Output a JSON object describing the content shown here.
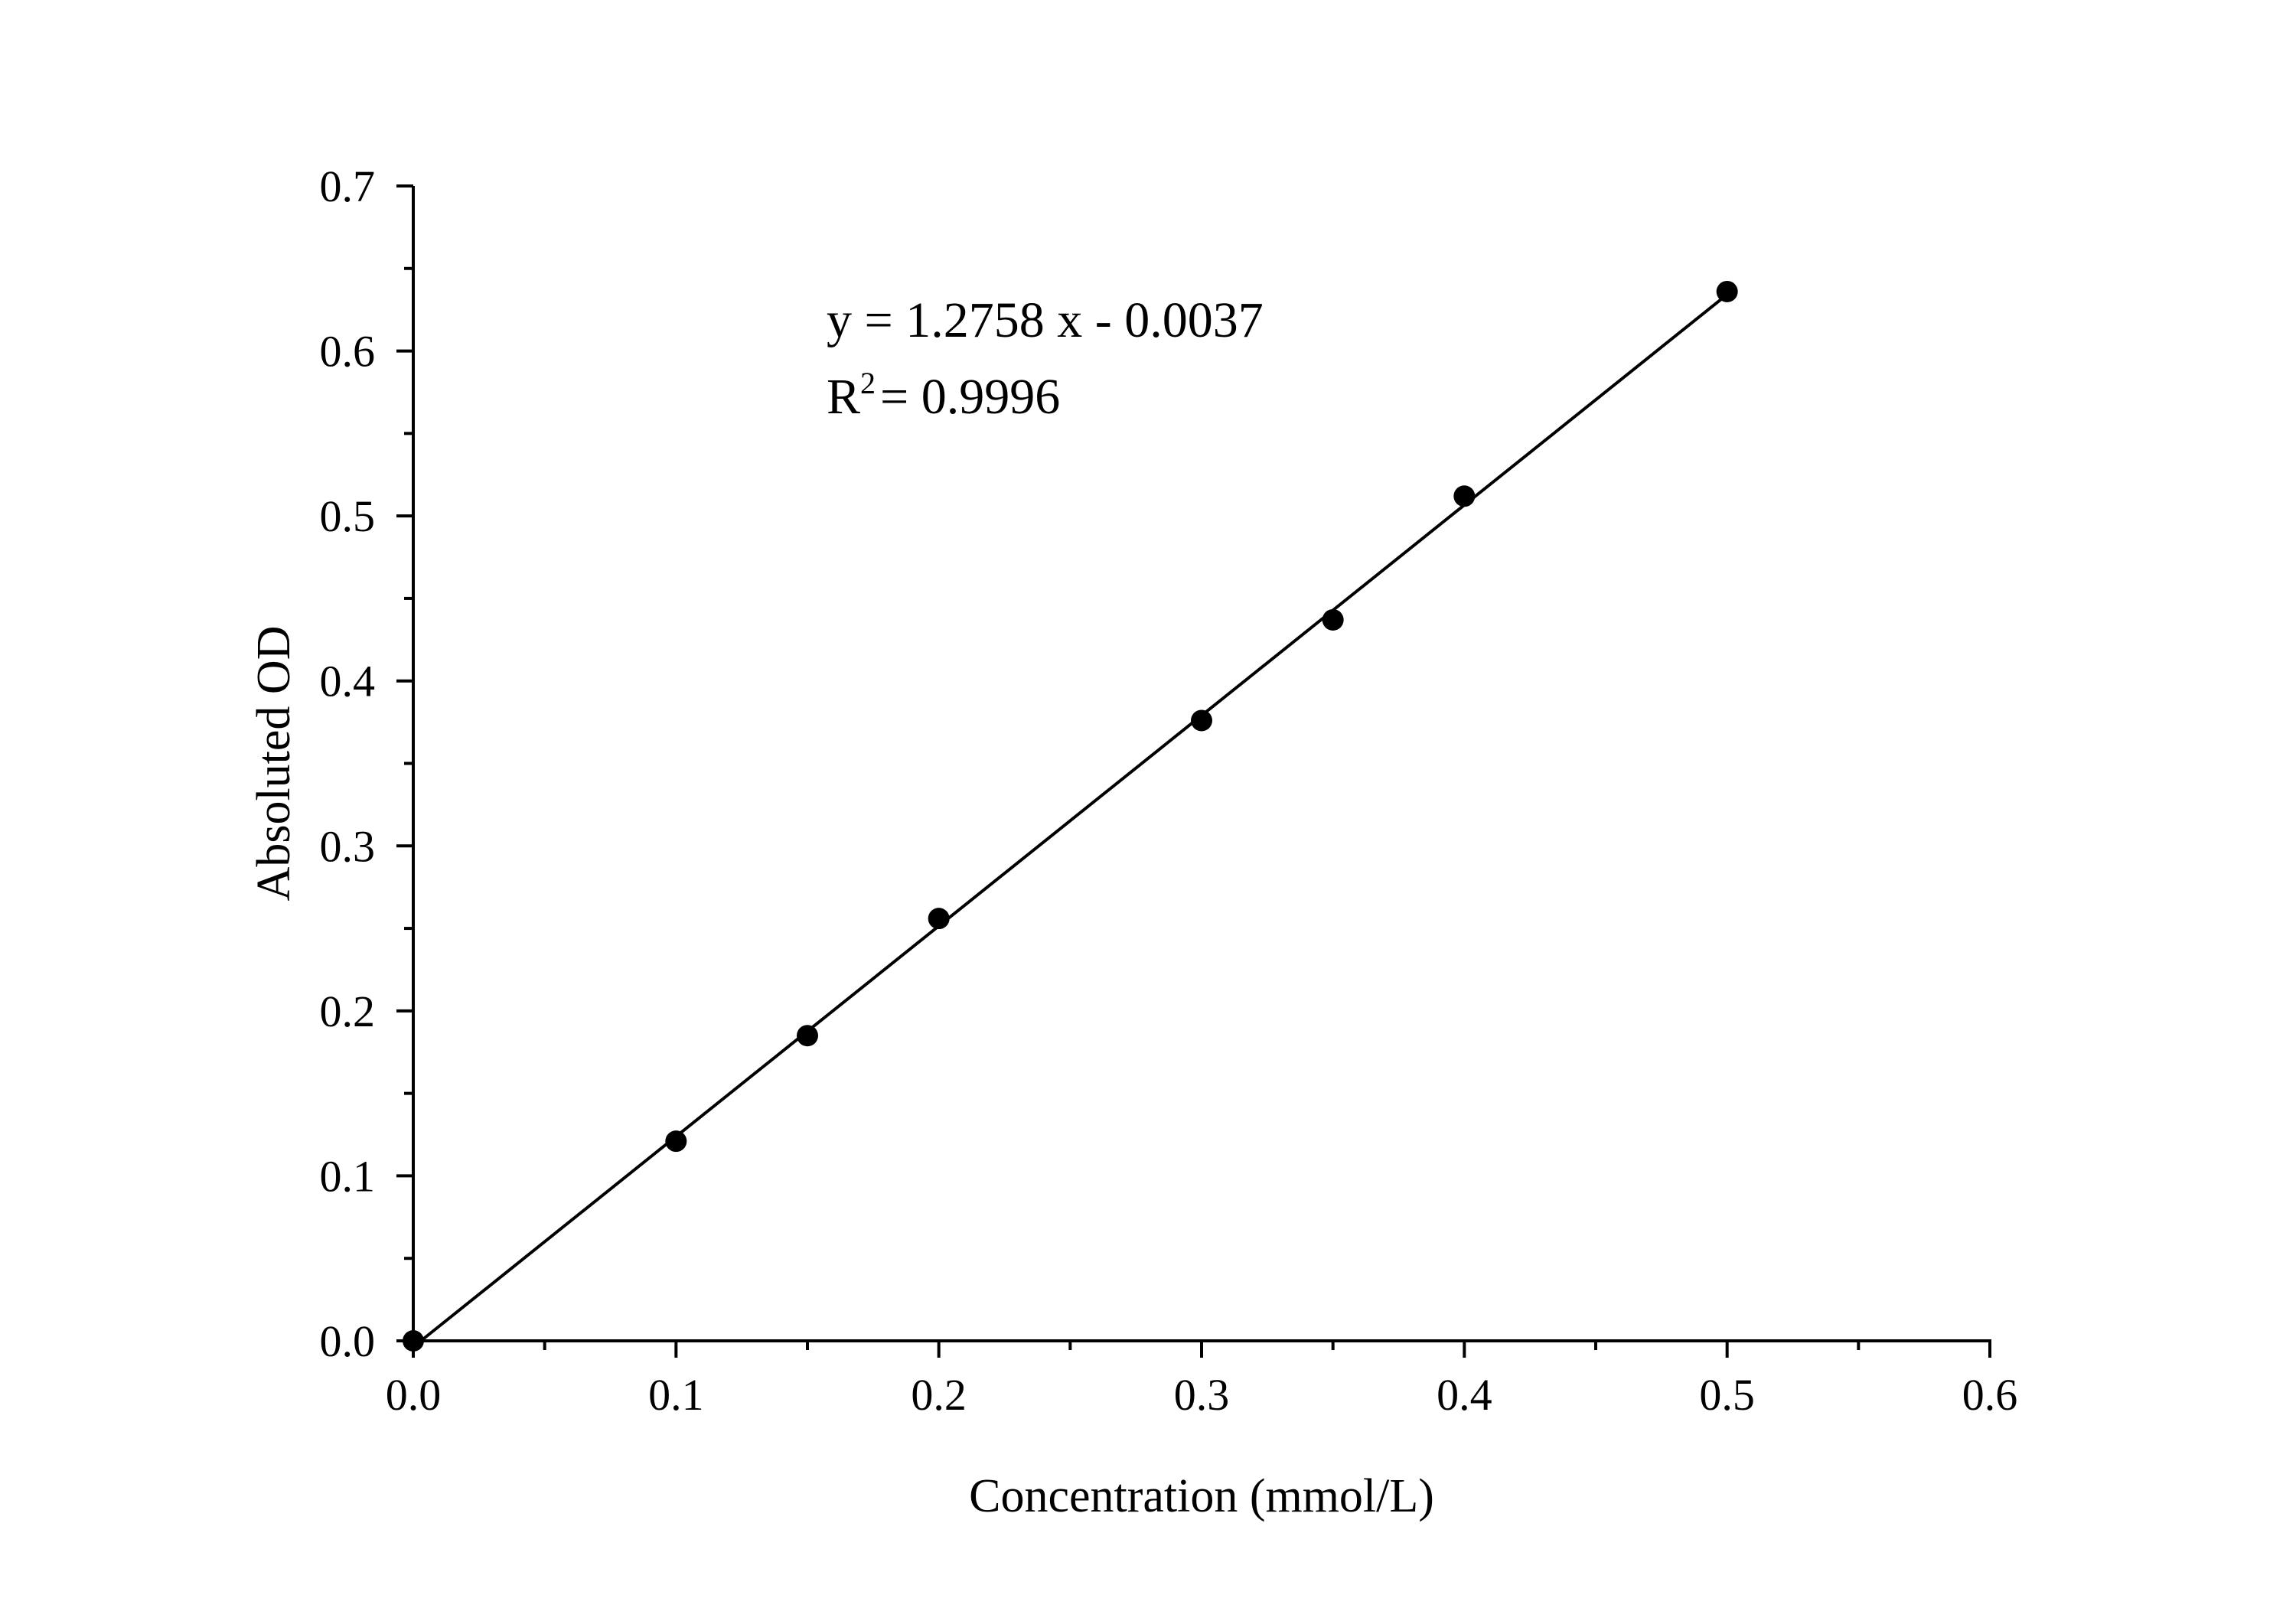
{
  "chart_data": {
    "type": "scatter",
    "title": "",
    "xlabel": "Concentration (mmol/L)",
    "ylabel": "Absoluted OD",
    "xlim": [
      0,
      0.6
    ],
    "ylim": [
      0,
      0.7
    ],
    "x_ticks": [
      "0.0",
      "0.1",
      "0.2",
      "0.3",
      "0.4",
      "0.5",
      "0.6"
    ],
    "y_ticks": [
      "0.0",
      "0.1",
      "0.2",
      "0.3",
      "0.4",
      "0.5",
      "0.6",
      "0.7"
    ],
    "x": [
      0.0,
      0.1,
      0.15,
      0.2,
      0.3,
      0.35,
      0.4,
      0.5
    ],
    "y": [
      0.0,
      0.121,
      0.185,
      0.256,
      0.376,
      0.437,
      0.512,
      0.636
    ],
    "fit": {
      "slope": 1.2758,
      "intercept": -0.0037,
      "x_range": [
        0,
        0.5
      ]
    },
    "annotation": {
      "equation": "y = 1.2758 x - 0.0037",
      "r2_prefix": "R",
      "r2_sup": "2",
      "r2_value": "= 0.9996"
    },
    "grid": false,
    "legend": "none",
    "colors": {
      "marker": "#000000",
      "line": "#000000",
      "axis": "#000000"
    }
  }
}
